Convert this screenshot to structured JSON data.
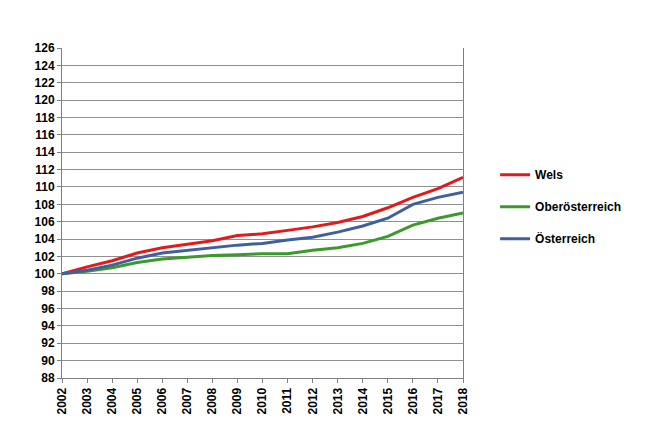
{
  "chart_data": {
    "type": "line",
    "x": [
      2002,
      2003,
      2004,
      2005,
      2006,
      2007,
      2008,
      2009,
      2010,
      2011,
      2012,
      2013,
      2014,
      2015,
      2016,
      2017,
      2018
    ],
    "series": [
      {
        "name": "Wels",
        "color": "#e31a1c",
        "values": [
          100,
          100.8,
          101.5,
          102.4,
          103.0,
          103.4,
          103.8,
          104.4,
          104.6,
          105.0,
          105.4,
          105.9,
          106.6,
          107.6,
          108.8,
          109.8,
          111.1
        ]
      },
      {
        "name": "Oberösterreich",
        "color": "#3a9a2a",
        "values": [
          100,
          100.3,
          100.7,
          101.3,
          101.7,
          101.9,
          102.1,
          102.2,
          102.3,
          102.3,
          102.7,
          103.0,
          103.5,
          104.3,
          105.6,
          106.4,
          107.0
        ]
      },
      {
        "name": "Österreich",
        "color": "#3f5f9f",
        "values": [
          100,
          100.4,
          101.0,
          101.8,
          102.4,
          102.7,
          103.0,
          103.3,
          103.5,
          103.9,
          104.2,
          104.8,
          105.5,
          106.4,
          108.0,
          108.8,
          109.4
        ]
      }
    ],
    "xlim": [
      2002,
      2018
    ],
    "xticks": [
      2002,
      2003,
      2004,
      2005,
      2006,
      2007,
      2008,
      2009,
      2010,
      2011,
      2012,
      2013,
      2014,
      2015,
      2016,
      2017,
      2018
    ],
    "ylim": [
      88,
      126
    ],
    "yticks": [
      88,
      90,
      92,
      94,
      96,
      98,
      100,
      102,
      104,
      106,
      108,
      110,
      112,
      114,
      116,
      118,
      120,
      122,
      124,
      126
    ],
    "grid": true,
    "legend": "right"
  }
}
